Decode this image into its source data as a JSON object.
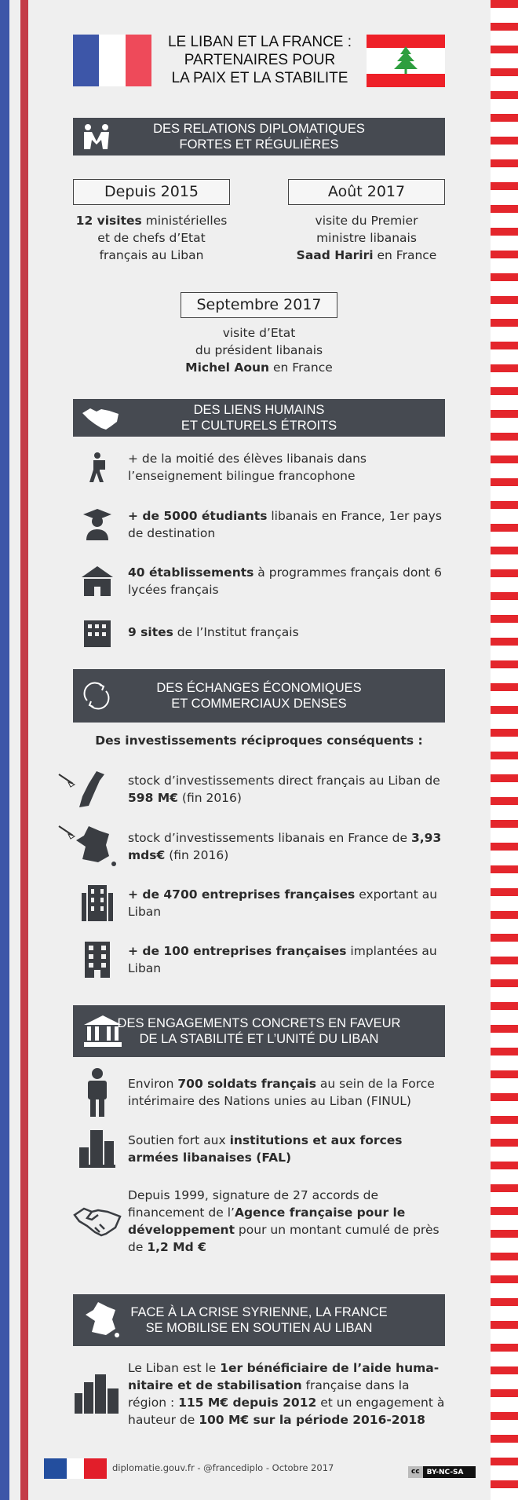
{
  "colors": {
    "france_blue": "#3d56a8",
    "france_red": "#c43b47",
    "lebanon_red": "#ee2028",
    "cedar_green": "#2e9e3f",
    "header_bg": "#464a51"
  },
  "title": [
    "LE LIBAN ET LA FRANCE :",
    "PARTENAIRES POUR",
    "LA PAIX ET LA STABILITE"
  ],
  "s1": {
    "header": [
      "DES RELATIONS DIPLOMATIQUES",
      "FORTES ET RÉGULIÈRES"
    ],
    "icon": "handshake-people-icon",
    "b1": {
      "label": "Depuis 2015",
      "bold": "12 visites",
      "t1": " ministérielles",
      "t2": "et de chefs d’Etat",
      "t3": "français au Liban"
    },
    "b2": {
      "label": "Août 2017",
      "t1": "visite du Premier",
      "t2": "ministre libanais",
      "bold": "Saad Hariri",
      "t3": " en France"
    },
    "b3": {
      "label": "Septembre 2017",
      "t1": "visite d’Etat",
      "t2": "du président libanais",
      "bold": "Michel Aoun",
      "t3": " en France"
    }
  },
  "s2": {
    "header": [
      "DES LIENS HUMAINS",
      "ET CULTURELS ÉTROITS"
    ],
    "icon": "handshake-icon",
    "items": [
      {
        "icon": "student-walking-icon",
        "pre": "+ de la moitié des élèves libanais dans l’enseignement bilingue francophone",
        "bold": "",
        "post": ""
      },
      {
        "icon": "graduate-icon",
        "pre": "",
        "bold": "+ de 5000 étudiants",
        "post": " libanais en France, 1er pays de destination"
      },
      {
        "icon": "school-icon",
        "pre": "",
        "bold": "40 établissements",
        "post": " à programmes français dont 6 lycées français"
      },
      {
        "icon": "building-icon",
        "pre": "",
        "bold": "9 sites",
        "post": " de l’Institut français"
      }
    ]
  },
  "s3": {
    "header": [
      "DES ÉCHANGES ÉCONOMIQUES",
      "ET COMMERCIAUX DENSES"
    ],
    "icon": "exchange-arrows-icon",
    "subtitle": "Des investissements réciproques conséquents :",
    "items": [
      {
        "icon": "lebanon-map-icon",
        "pre": "stock d’investissements direct français au Liban de ",
        "bold": "598 M€",
        "post": " (fin 2016)"
      },
      {
        "icon": "france-map-icon",
        "pre": "stock d’investissements libanais en France de ",
        "bold": "3,93 mds€",
        "post": " (fin 2016)"
      },
      {
        "icon": "office-building-icon",
        "pre": "",
        "bold": "+ de 4700 entreprises françaises",
        "post": " exportant au Liban"
      },
      {
        "icon": "office-building-icon",
        "pre": "",
        "bold": "+ de 100 entreprises françaises",
        "post": " implantées au Liban"
      }
    ]
  },
  "s4": {
    "header": [
      "DES ENGAGEMENTS CONCRETS EN FAVEUR",
      "DE LA STABILITÉ ET L’UNITÉ DU LIBAN"
    ],
    "icon": "institution-icon",
    "items": [
      {
        "icon": "soldier-icon",
        "pre": "Environ ",
        "bold": "700 soldats français",
        "post": " au sein de la Force intérimaire des Nations unies au Liban (FINUL)"
      },
      {
        "icon": "city-icon",
        "pre": "Soutien fort aux ",
        "bold": "institutions et aux forces armées libanaises (FAL)",
        "post": ""
      },
      {
        "icon": "handshake-outline-icon",
        "pre": "Depuis 1999, signature de 27 accords de financement de l’",
        "bold": "Agence française pour le développement",
        "post": " pour un montant cumulé de près de ",
        "bold2": "1,2 Md €"
      }
    ]
  },
  "s5": {
    "header": [
      "FACE À LA CRISE SYRIENNE, LA FRANCE",
      "SE MOBILISE EN SOUTIEN AU LIBAN"
    ],
    "icon": "france-map-icon",
    "item": {
      "icon": "city-skyline-icon",
      "pre": "Le Liban est le ",
      "bold": "1er bénéficiaire de l’aide huma­nitaire et de stabilisation",
      "mid": " française dans la région : ",
      "bold2": "115 M€ depuis 2012",
      "mid2": " et un engagement à hauteur de ",
      "bold3": "100 M€ sur la période 2016-2018"
    }
  },
  "footer": {
    "text": "diplomatie.gouv.fr - @francediplo - Octobre 2017",
    "license": "BY-NC-SA",
    "cc": "cc"
  }
}
